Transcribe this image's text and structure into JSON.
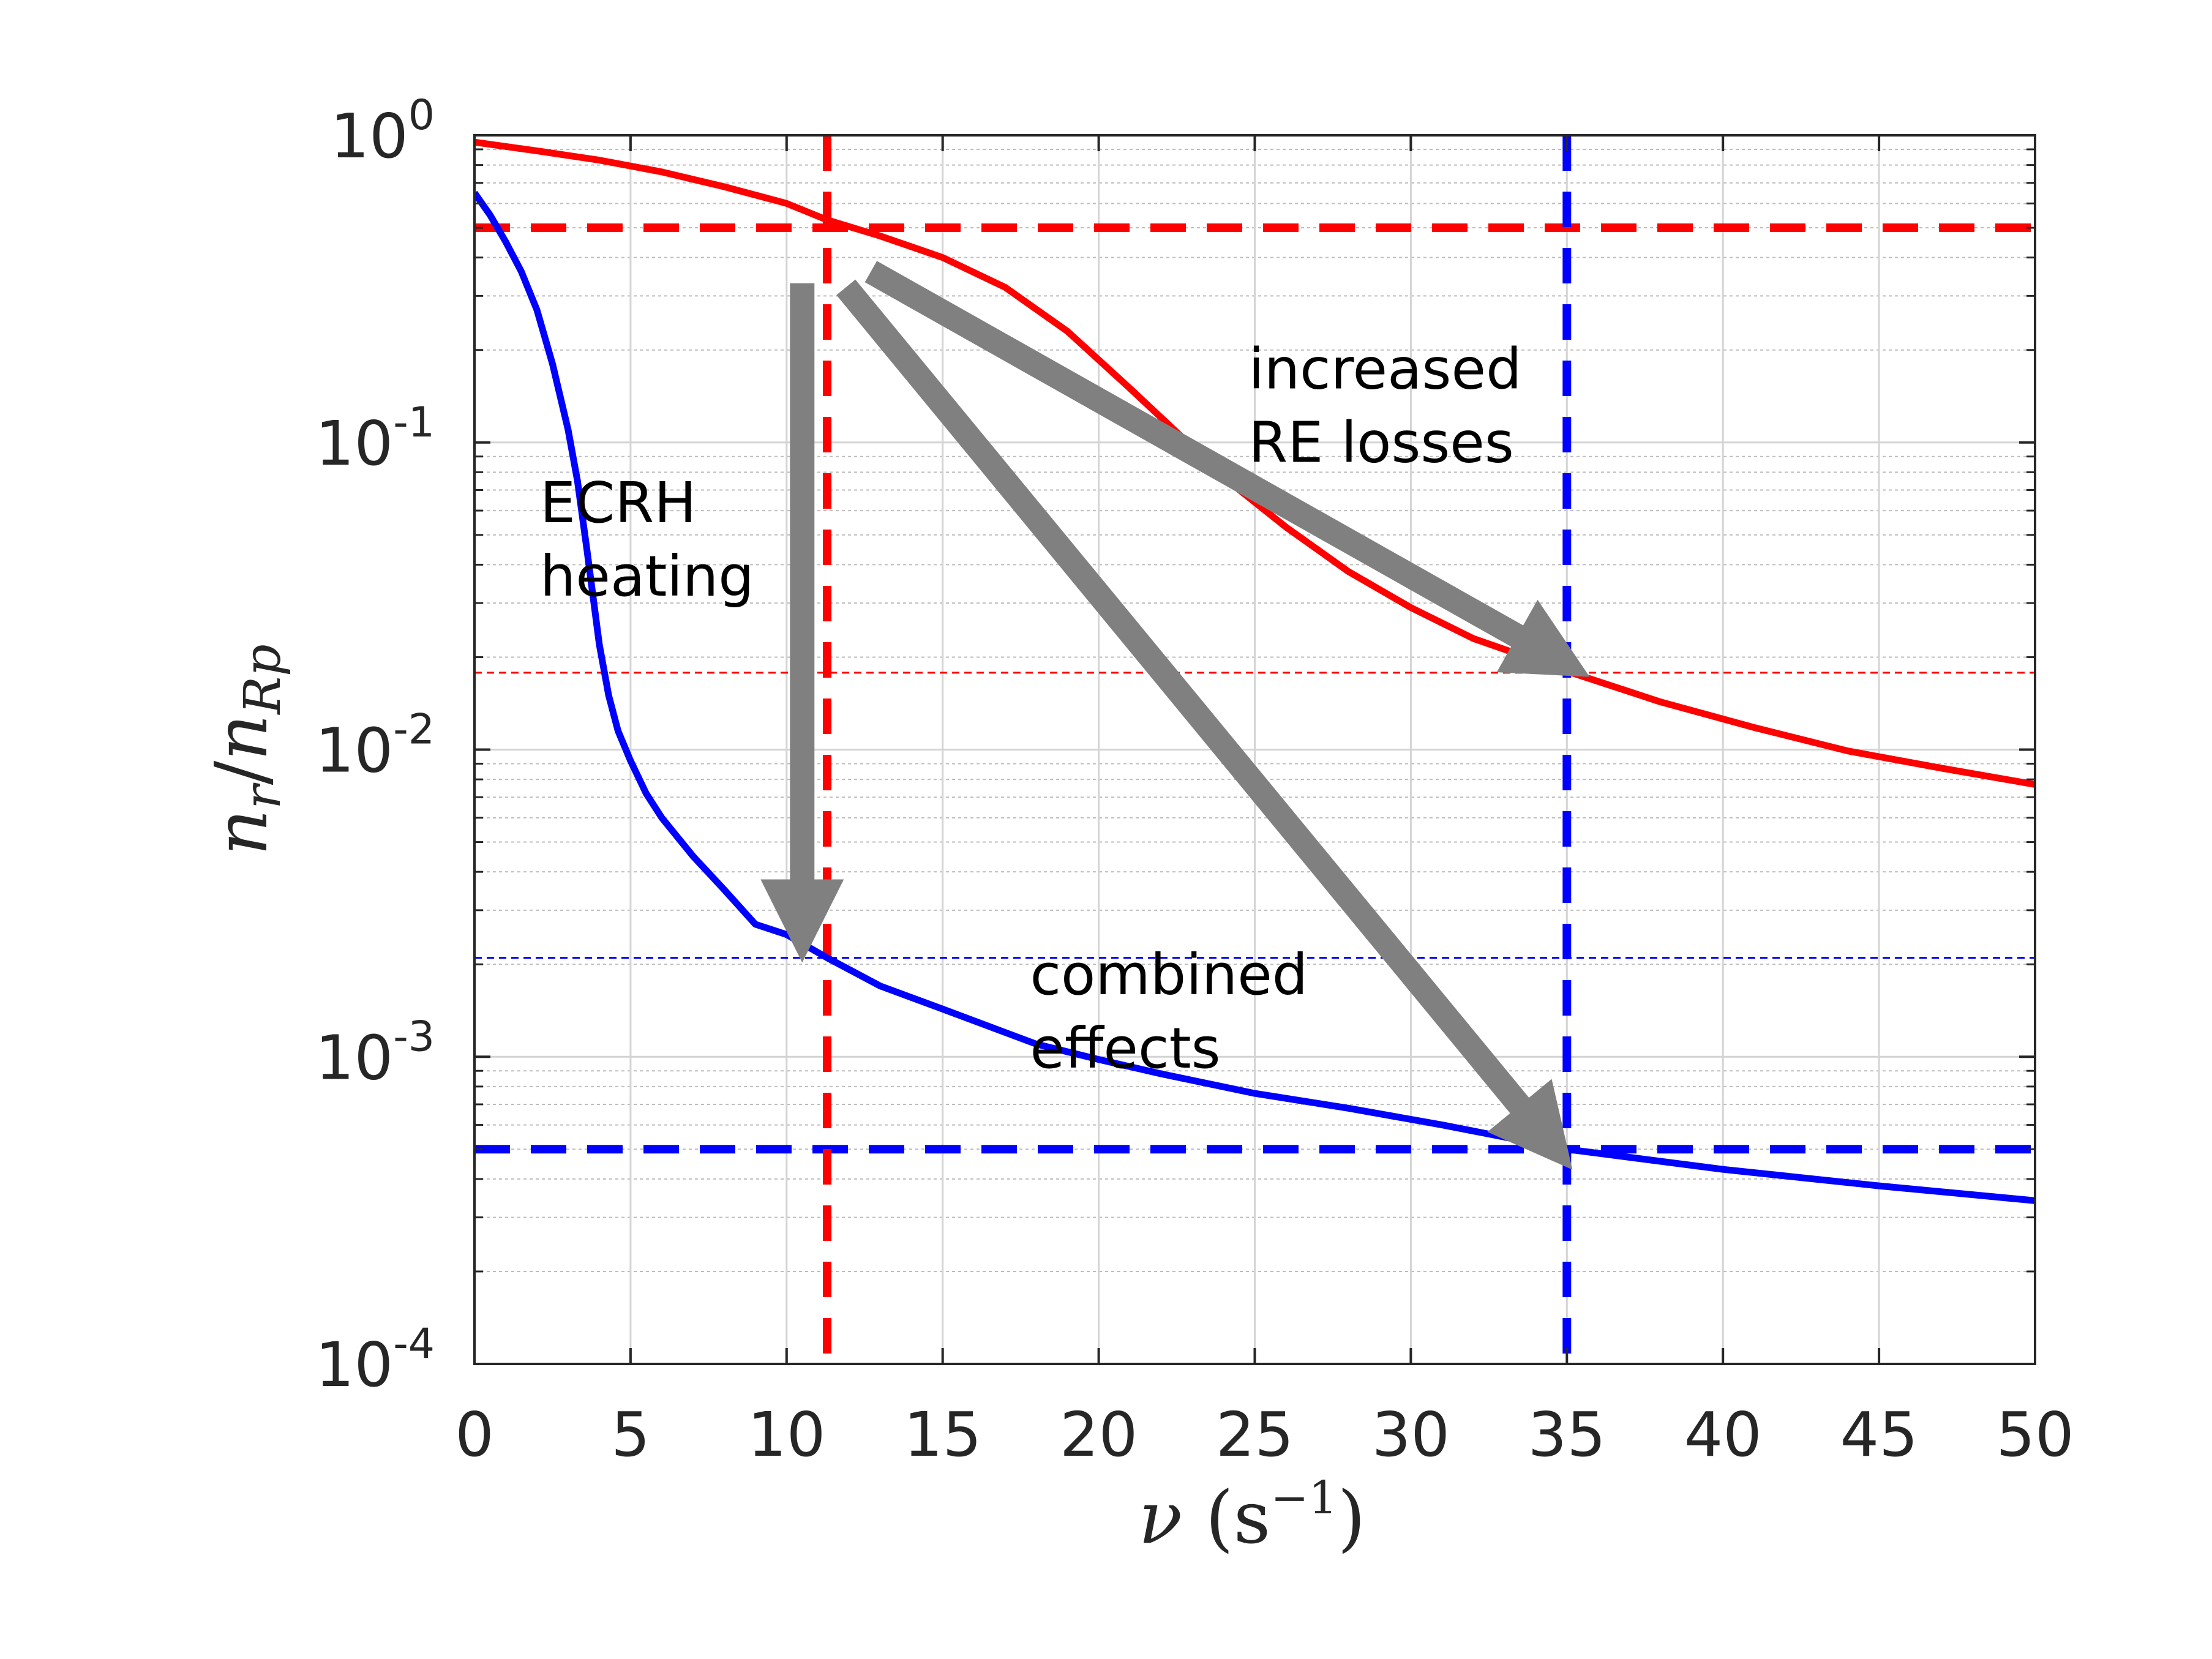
{
  "chart_data": {
    "type": "line",
    "yscale": "log",
    "xlim": [
      0,
      50
    ],
    "ylim": [
      0.0001,
      1
    ],
    "x_ticks": [
      "0",
      "5",
      "10",
      "15",
      "20",
      "25",
      "30",
      "35",
      "40",
      "45",
      "50"
    ],
    "y_ticks": [
      {
        "base": "10",
        "exp": "-4"
      },
      {
        "base": "10",
        "exp": "-3"
      },
      {
        "base": "10",
        "exp": "-2"
      },
      {
        "base": "10",
        "exp": "-1"
      },
      {
        "base": "10",
        "exp": "0"
      }
    ],
    "xlabel": {
      "symbol": "ν",
      "unit": "s",
      "unit_exp": "−1"
    },
    "ylabel": {
      "num": "n",
      "num_sub": "r",
      "slash": "/",
      "den": "n",
      "den_sub": "Rp"
    },
    "grid": true,
    "series": [
      {
        "name": "red",
        "color": "#ff0000",
        "x": [
          0,
          2,
          4,
          6,
          8,
          10,
          11.3,
          13,
          15,
          17,
          19,
          21,
          22.5,
          24,
          26,
          28,
          30,
          32,
          35,
          38,
          41,
          44,
          47,
          50
        ],
        "y": [
          0.95,
          0.89,
          0.83,
          0.76,
          0.68,
          0.6,
          0.53,
          0.47,
          0.4,
          0.32,
          0.23,
          0.15,
          0.108,
          0.077,
          0.053,
          0.038,
          0.029,
          0.023,
          0.018,
          0.0143,
          0.0118,
          0.0099,
          0.0087,
          0.0077
        ]
      },
      {
        "name": "blue",
        "color": "#0000ff",
        "x": [
          0,
          0.5,
          1,
          1.5,
          2,
          2.5,
          3,
          3.3,
          3.6,
          4,
          4.3,
          4.6,
          5,
          5.5,
          6,
          7,
          8,
          9,
          10,
          11.3,
          13,
          15,
          18,
          20,
          22,
          25,
          28,
          31,
          35,
          40,
          45,
          50
        ],
        "y": [
          0.65,
          0.55,
          0.45,
          0.36,
          0.27,
          0.18,
          0.11,
          0.075,
          0.045,
          0.022,
          0.015,
          0.0115,
          0.0092,
          0.0072,
          0.006,
          0.0045,
          0.0035,
          0.0027,
          0.0025,
          0.0021,
          0.0017,
          0.00143,
          0.0011,
          0.00098,
          0.00088,
          0.00076,
          0.00068,
          0.0006,
          0.0005,
          0.00043,
          0.00038,
          0.00034
        ]
      }
    ],
    "reference_lines": [
      {
        "orient": "h",
        "value": 0.5,
        "color": "#ff0000",
        "style": "thick-dashed"
      },
      {
        "orient": "h",
        "value": 0.0005,
        "color": "#0000ff",
        "style": "thick-dashed"
      },
      {
        "orient": "v",
        "value": 11.3,
        "color": "#ff0000",
        "style": "thick-dashed"
      },
      {
        "orient": "v",
        "value": 35,
        "color": "#0000ff",
        "style": "thick-dashed"
      },
      {
        "orient": "h",
        "value": 0.0178,
        "color": "#ff0000",
        "style": "thin-dashed"
      },
      {
        "orient": "h",
        "value": 0.0021,
        "color": "#0000ff",
        "style": "thin-dashed"
      }
    ],
    "arrows": [
      {
        "label": "ECRH heating",
        "from": [
          10.5,
          0.33
        ],
        "to": [
          10.5,
          0.0026
        ]
      },
      {
        "label": "increased RE losses",
        "from": [
          12.7,
          0.36
        ],
        "to": [
          34.8,
          0.0195
        ]
      },
      {
        "label": "combined effects",
        "from": [
          11.9,
          0.32
        ],
        "to": [
          34.5,
          0.00052
        ]
      }
    ],
    "annotations": [
      {
        "lines": [
          "ECRH",
          "heating"
        ],
        "x": 2.1,
        "y": 0.055
      },
      {
        "lines": [
          "increased",
          "RE losses"
        ],
        "x": 24.8,
        "y": 0.15
      },
      {
        "lines": [
          "combined",
          "effects"
        ],
        "x": 17.8,
        "y": 0.0016
      }
    ]
  }
}
